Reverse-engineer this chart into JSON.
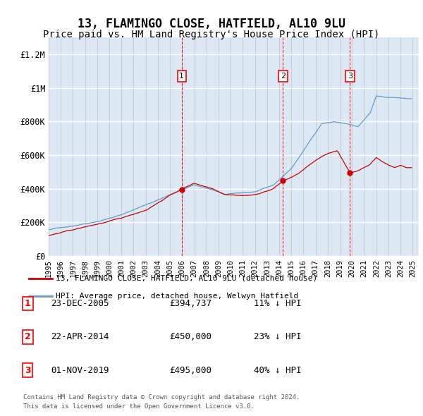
{
  "title": "13, FLAMINGO CLOSE, HATFIELD, AL10 9LU",
  "subtitle": "Price paid vs. HM Land Registry's House Price Index (HPI)",
  "title_fontsize": 12,
  "subtitle_fontsize": 10,
  "ylim": [
    0,
    1300000
  ],
  "yticks": [
    0,
    200000,
    400000,
    600000,
    800000,
    1000000,
    1200000
  ],
  "ytick_labels": [
    "£0",
    "£200K",
    "£400K",
    "£600K",
    "£800K",
    "£1M",
    "£1.2M"
  ],
  "background_color": "#dce9f5",
  "legend_line1": "13, FLAMINGO CLOSE, HATFIELD, AL10 9LU (detached house)",
  "legend_line2": "HPI: Average price, detached house, Welwyn Hatfield",
  "footer_line1": "Contains HM Land Registry data © Crown copyright and database right 2024.",
  "footer_line2": "This data is licensed under the Open Government Licence v3.0.",
  "sales": [
    {
      "num": 1,
      "date": "23-DEC-2005",
      "price": "£394,737",
      "hpi": "11% ↓ HPI",
      "year": 2005.97
    },
    {
      "num": 2,
      "date": "22-APR-2014",
      "price": "£450,000",
      "hpi": "23% ↓ HPI",
      "year": 2014.31
    },
    {
      "num": 3,
      "date": "01-NOV-2019",
      "price": "£495,000",
      "hpi": "40% ↓ HPI",
      "year": 2019.83
    }
  ],
  "sale_prices": [
    394737,
    450000,
    495000
  ],
  "line_color_red": "#cc0000",
  "line_color_blue": "#6699cc",
  "xlim_start": 1995.0,
  "xlim_end": 2025.5,
  "xticks": [
    1995,
    1996,
    1997,
    1998,
    1999,
    2000,
    2001,
    2002,
    2003,
    2004,
    2005,
    2006,
    2007,
    2008,
    2009,
    2010,
    2011,
    2012,
    2013,
    2014,
    2015,
    2016,
    2017,
    2018,
    2019,
    2020,
    2021,
    2022,
    2023,
    2024,
    2025
  ]
}
